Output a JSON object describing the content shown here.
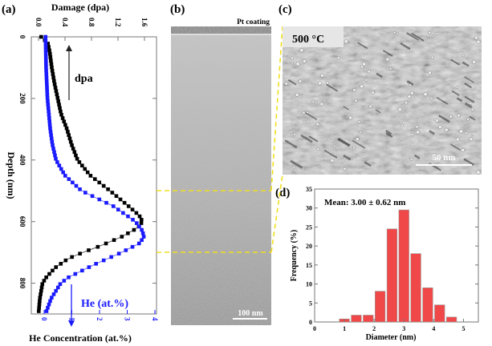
{
  "panels": {
    "a": "(a)",
    "b": "(b)",
    "c": "(c)",
    "d": "(d)"
  },
  "tem_b": {
    "coating_label": "Pt coating",
    "scale_bar": "100 nm"
  },
  "tem_c": {
    "temperature_label": "500 °C",
    "scale_bar": "50 nm"
  },
  "colors": {
    "dpa": "#000000",
    "he": "#1a1aff",
    "bar": "#f04848",
    "guide": "#f0e020"
  },
  "chart_data": [
    {
      "type": "line",
      "title": "",
      "ylabel": "Depth (nm)",
      "xlabel_top": "Damage (dpa)",
      "xlabel_bottom": "He Concentration (at.%)",
      "ylim": [
        0,
        900
      ],
      "xlim_top": [
        0,
        1.6
      ],
      "xlim_bottom": [
        0,
        4
      ],
      "yticks": [
        0,
        200,
        400,
        600,
        800
      ],
      "xticks_top": [
        "0.0",
        "0.4",
        "0.8",
        "1.2",
        "1.6"
      ],
      "xticks_bottom": [
        "0",
        "1",
        "2",
        "3",
        "4"
      ],
      "annotations": {
        "dpa": "dpa",
        "he": "He (at.%)"
      },
      "series": [
        {
          "name": "dpa",
          "axis": "top",
          "depth": [
            0,
            20,
            50,
            100,
            150,
            200,
            250,
            300,
            350,
            400,
            450,
            500,
            550,
            580,
            600,
            620,
            650,
            680,
            700,
            720,
            750,
            780,
            800,
            850,
            900
          ],
          "values": [
            0.04,
            0.14,
            0.17,
            0.2,
            0.24,
            0.29,
            0.34,
            0.43,
            0.5,
            0.59,
            0.78,
            1.08,
            1.36,
            1.52,
            1.57,
            1.5,
            1.25,
            0.92,
            0.67,
            0.45,
            0.25,
            0.12,
            0.06,
            0.02,
            0.0
          ]
        },
        {
          "name": "He (at.%)",
          "axis": "bottom",
          "depth": [
            0,
            100,
            200,
            300,
            350,
            400,
            450,
            500,
            550,
            600,
            630,
            650,
            670,
            700,
            740,
            780,
            800,
            850,
            900
          ],
          "values": [
            0.05,
            0.07,
            0.12,
            0.22,
            0.3,
            0.43,
            0.75,
            1.35,
            2.5,
            3.3,
            3.55,
            3.6,
            3.45,
            2.8,
            1.8,
            0.9,
            0.6,
            0.25,
            0.05
          ]
        }
      ]
    },
    {
      "type": "bar",
      "title": "",
      "annotation": "Mean: 3.00 ± 0.62 nm",
      "xlabel": "Diameter (nm)",
      "ylabel": "Frequency (%)",
      "xlim": [
        0,
        5.5
      ],
      "ylim": [
        0,
        35
      ],
      "xticks": [
        "0",
        "1",
        "2",
        "3",
        "4",
        "5"
      ],
      "yticks": [
        "0",
        "5",
        "10",
        "15",
        "20",
        "25",
        "30",
        "35"
      ],
      "categories": [
        1.0,
        1.4,
        1.8,
        2.2,
        2.6,
        3.0,
        3.4,
        3.8,
        4.2,
        4.6
      ],
      "values": [
        0.8,
        1.8,
        1.8,
        8.1,
        24.5,
        29.5,
        18.0,
        9.0,
        4.5,
        1.3
      ]
    }
  ]
}
